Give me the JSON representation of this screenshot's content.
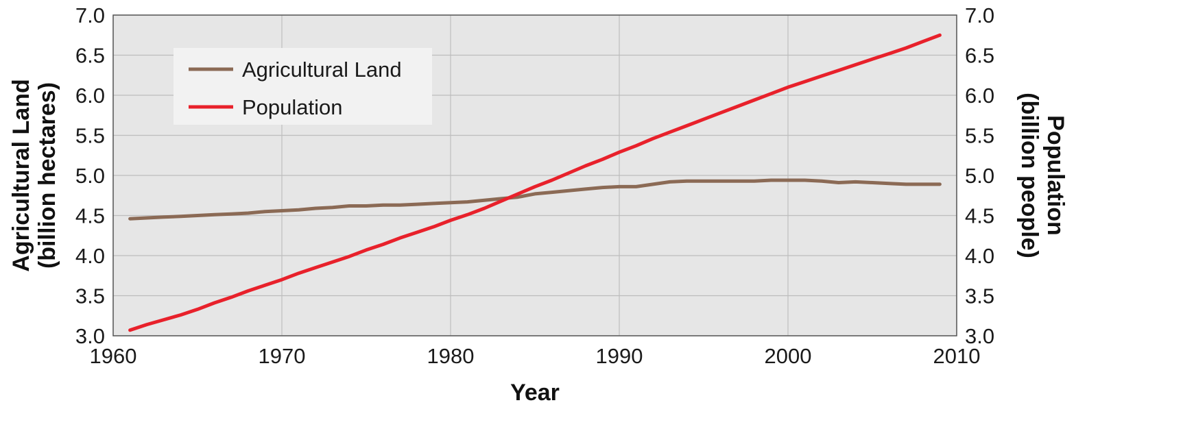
{
  "chart_data": {
    "type": "line",
    "xlabel": "Year",
    "ylabel_left": [
      "Agricultural Land",
      "(billion hectares)"
    ],
    "ylabel_right": [
      "Population",
      "(billion people)"
    ],
    "xlim": [
      1960,
      2010
    ],
    "ylim": [
      3.0,
      7.0
    ],
    "x_ticks": [
      "1960",
      "1970",
      "1980",
      "1990",
      "2000",
      "2010"
    ],
    "y_ticks": [
      "3.0",
      "3.5",
      "4.0",
      "4.5",
      "5.0",
      "5.5",
      "6.0",
      "6.5",
      "7.0"
    ],
    "grid": true,
    "legend_position": "top-left",
    "colors": {
      "plot_background": "#e6e6e6",
      "grid": "#bdbdbd",
      "axis": "#555555"
    },
    "series": [
      {
        "name": "Agricultural Land",
        "color": "#8b6a55",
        "x": [
          1961,
          1962,
          1963,
          1964,
          1965,
          1966,
          1967,
          1968,
          1969,
          1970,
          1971,
          1972,
          1973,
          1974,
          1975,
          1976,
          1977,
          1978,
          1979,
          1980,
          1981,
          1982,
          1983,
          1984,
          1985,
          1986,
          1987,
          1988,
          1989,
          1990,
          1991,
          1992,
          1993,
          1994,
          1995,
          1996,
          1997,
          1998,
          1999,
          2000,
          2001,
          2002,
          2003,
          2004,
          2005,
          2006,
          2007,
          2008,
          2009
        ],
        "values": [
          4.46,
          4.47,
          4.48,
          4.49,
          4.5,
          4.51,
          4.52,
          4.53,
          4.55,
          4.56,
          4.57,
          4.59,
          4.6,
          4.62,
          4.62,
          4.63,
          4.63,
          4.64,
          4.65,
          4.66,
          4.67,
          4.69,
          4.71,
          4.73,
          4.77,
          4.79,
          4.81,
          4.83,
          4.85,
          4.86,
          4.86,
          4.89,
          4.92,
          4.93,
          4.93,
          4.93,
          4.93,
          4.93,
          4.94,
          4.94,
          4.94,
          4.93,
          4.91,
          4.92,
          4.91,
          4.9,
          4.89,
          4.89,
          4.89
        ]
      },
      {
        "name": "Population",
        "color": "#e8212b",
        "x": [
          1961,
          1962,
          1963,
          1964,
          1965,
          1966,
          1967,
          1968,
          1969,
          1970,
          1971,
          1972,
          1973,
          1974,
          1975,
          1976,
          1977,
          1978,
          1979,
          1980,
          1981,
          1982,
          1983,
          1984,
          1985,
          1986,
          1987,
          1988,
          1989,
          1990,
          1991,
          1992,
          1993,
          1994,
          1995,
          1996,
          1997,
          1998,
          1999,
          2000,
          2001,
          2002,
          2003,
          2004,
          2005,
          2006,
          2007,
          2008,
          2009
        ],
        "values": [
          3.07,
          3.14,
          3.2,
          3.26,
          3.33,
          3.41,
          3.48,
          3.56,
          3.63,
          3.7,
          3.78,
          3.85,
          3.92,
          3.99,
          4.07,
          4.14,
          4.22,
          4.29,
          4.36,
          4.44,
          4.51,
          4.59,
          4.68,
          4.77,
          4.86,
          4.94,
          5.03,
          5.12,
          5.2,
          5.29,
          5.37,
          5.46,
          5.54,
          5.62,
          5.7,
          5.78,
          5.86,
          5.94,
          6.02,
          6.1,
          6.17,
          6.24,
          6.31,
          6.38,
          6.45,
          6.52,
          6.59,
          6.67,
          6.75
        ]
      }
    ]
  }
}
